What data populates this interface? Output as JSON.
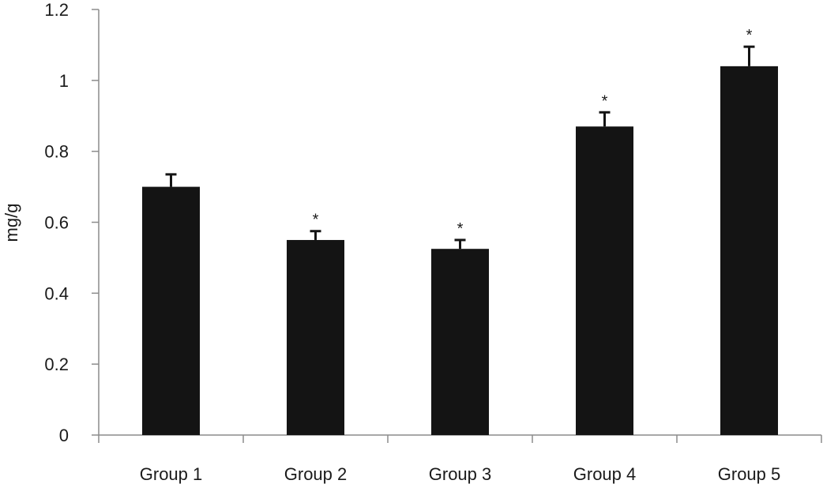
{
  "chart_data": {
    "type": "bar",
    "title": "",
    "xlabel": "",
    "ylabel": "mg/g",
    "ylim": [
      0,
      1.2
    ],
    "yticks": [
      "0",
      "0.2",
      "0.4",
      "0.6",
      "0.8",
      "1",
      "1.2"
    ],
    "ytick_values": [
      0,
      0.2,
      0.4,
      0.6,
      0.8,
      1.0,
      1.2
    ],
    "categories": [
      "Group 1",
      "Group 2",
      "Group 3",
      "Group 4",
      "Group 5"
    ],
    "values": [
      0.7,
      0.55,
      0.525,
      0.87,
      1.04
    ],
    "error_plus": [
      0.035,
      0.025,
      0.025,
      0.04,
      0.055
    ],
    "significance": [
      "",
      "*",
      "*",
      "*",
      "*"
    ],
    "grid": false,
    "legend": "none",
    "bar_color": "#141414"
  }
}
